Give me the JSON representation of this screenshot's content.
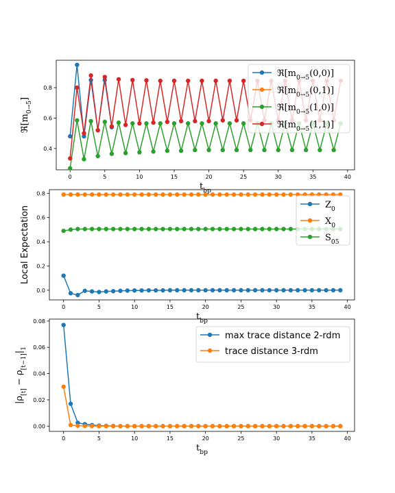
{
  "colors": {
    "blue": "#1f77b4",
    "orange": "#ff7f0e",
    "green": "#2ca02c",
    "red": "#d62728"
  },
  "chart_data": [
    {
      "type": "line",
      "xlabel": "t_bp",
      "ylabel": "ℜ[m_{0→5}]",
      "xlim": [
        -2,
        41
      ],
      "ylim": [
        0.26,
        0.98
      ],
      "xticks": [
        0,
        5,
        10,
        15,
        20,
        25,
        30,
        35,
        40
      ],
      "yticks": [
        0.4,
        0.6,
        0.8
      ],
      "legend_position": "top-right",
      "series": [
        {
          "name": "ℜ[m_{0→5}(0,0)]",
          "color": "#1f77b4",
          "x": [
            0,
            1,
            2,
            3,
            4,
            5,
            6
          ],
          "y": [
            0.48,
            0.95,
            0.48,
            0.85,
            0.52,
            0.85,
            0.54
          ]
        },
        {
          "name": "ℜ[m_{0→5}(0,1)]",
          "color": "#ff7f0e",
          "x": [],
          "y": []
        },
        {
          "name": "ℜ[m_{0→5}(1,0)]",
          "color": "#2ca02c",
          "x": [
            0,
            1,
            2,
            3,
            4,
            5,
            6,
            7,
            8,
            9,
            10,
            11,
            12,
            13,
            14,
            15,
            16,
            17,
            18,
            19,
            20,
            21,
            22,
            23,
            24,
            25,
            26,
            27,
            28,
            29,
            30,
            31,
            32,
            33,
            34,
            35,
            36,
            37,
            38,
            39
          ],
          "y": [
            0.27,
            0.585,
            0.33,
            0.58,
            0.35,
            0.575,
            0.365,
            0.57,
            0.37,
            0.565,
            0.375,
            0.565,
            0.38,
            0.565,
            0.385,
            0.565,
            0.385,
            0.565,
            0.39,
            0.565,
            0.39,
            0.565,
            0.39,
            0.565,
            0.39,
            0.565,
            0.39,
            0.565,
            0.39,
            0.565,
            0.39,
            0.565,
            0.39,
            0.565,
            0.39,
            0.565,
            0.39,
            0.565,
            0.39,
            0.565
          ]
        },
        {
          "name": "ℜ[m_{0→5}(1,1)]",
          "color": "#d62728",
          "x": [
            0,
            1,
            2,
            3,
            4,
            5,
            6,
            7,
            8,
            9,
            10,
            11,
            12,
            13,
            14,
            15,
            16,
            17,
            18,
            19,
            20,
            21,
            22,
            23,
            24,
            25,
            26,
            27,
            28,
            29,
            30,
            31,
            32,
            33,
            34,
            35,
            36,
            37,
            38,
            39
          ],
          "y": [
            0.335,
            0.8,
            0.5,
            0.88,
            0.52,
            0.87,
            0.545,
            0.855,
            0.555,
            0.85,
            0.565,
            0.848,
            0.57,
            0.845,
            0.575,
            0.845,
            0.58,
            0.845,
            0.58,
            0.845,
            0.58,
            0.845,
            0.585,
            0.845,
            0.585,
            0.845,
            0.585,
            0.845,
            0.585,
            0.845,
            0.585,
            0.845,
            0.585,
            0.845,
            0.585,
            0.845,
            0.585,
            0.845,
            0.585,
            0.845
          ]
        }
      ]
    },
    {
      "type": "line",
      "xlabel": "t_bp",
      "ylabel": "Local Expectation",
      "xlim": [
        -2,
        41
      ],
      "ylim": [
        -0.08,
        0.83
      ],
      "xticks": [
        0,
        5,
        10,
        15,
        20,
        25,
        30,
        35,
        40
      ],
      "yticks": [
        0.0,
        0.2,
        0.4,
        0.6,
        0.8
      ],
      "legend_position": "top-right",
      "series": [
        {
          "name": "Z_0",
          "color": "#1f77b4",
          "x": [
            0,
            1,
            2,
            3,
            4,
            5,
            6,
            7,
            8,
            9,
            10,
            11,
            12,
            13,
            14,
            15,
            16,
            17,
            18,
            19,
            20,
            21,
            22,
            23,
            24,
            25,
            26,
            27,
            28,
            29,
            30,
            31,
            32,
            33,
            34,
            35,
            36,
            37,
            38,
            39
          ],
          "y": [
            0.12,
            -0.025,
            -0.04,
            -0.005,
            -0.01,
            -0.015,
            -0.01,
            -0.008,
            -0.005,
            -0.003,
            -0.002,
            -0.002,
            -0.001,
            -0.001,
            -0.001,
            0,
            0,
            0,
            0,
            0,
            0,
            0,
            0,
            0,
            0,
            0,
            0,
            0,
            0,
            0,
            0,
            0,
            0,
            0,
            0,
            0,
            0,
            0,
            0,
            0
          ]
        },
        {
          "name": "X_0",
          "color": "#ff7f0e",
          "x": [
            0,
            1,
            2,
            3,
            4,
            5,
            6,
            7,
            8,
            9,
            10,
            11,
            12,
            13,
            14,
            15,
            16,
            17,
            18,
            19,
            20,
            21,
            22,
            23,
            24,
            25,
            26,
            27,
            28,
            29,
            30,
            31,
            32,
            33,
            34,
            35,
            36,
            37,
            38,
            39
          ],
          "y": [
            0.79,
            0.79,
            0.79,
            0.79,
            0.79,
            0.79,
            0.79,
            0.79,
            0.79,
            0.79,
            0.79,
            0.79,
            0.79,
            0.79,
            0.79,
            0.79,
            0.79,
            0.79,
            0.79,
            0.79,
            0.79,
            0.79,
            0.79,
            0.79,
            0.79,
            0.79,
            0.79,
            0.79,
            0.79,
            0.79,
            0.79,
            0.79,
            0.79,
            0.79,
            0.79,
            0.79,
            0.79,
            0.79,
            0.79,
            0.79
          ]
        },
        {
          "name": "S_05",
          "color": "#2ca02c",
          "x": [
            0,
            1,
            2,
            3,
            4,
            5,
            6,
            7,
            8,
            9,
            10,
            11,
            12,
            13,
            14,
            15,
            16,
            17,
            18,
            19,
            20,
            21,
            22,
            23,
            24,
            25,
            26,
            27,
            28,
            29,
            30,
            31,
            32,
            33,
            34,
            35,
            36,
            37,
            38,
            39
          ],
          "y": [
            0.49,
            0.5,
            0.505,
            0.505,
            0.505,
            0.505,
            0.505,
            0.505,
            0.505,
            0.505,
            0.505,
            0.505,
            0.505,
            0.505,
            0.505,
            0.505,
            0.505,
            0.505,
            0.505,
            0.505,
            0.505,
            0.505,
            0.505,
            0.505,
            0.505,
            0.505,
            0.505,
            0.505,
            0.505,
            0.505,
            0.505,
            0.505,
            0.505,
            0.505,
            0.505,
            0.505,
            0.505,
            0.505,
            0.505,
            0.505
          ]
        }
      ]
    },
    {
      "type": "line",
      "xlabel": "t_bp",
      "ylabel": "|ρ_[t] − ρ_[t−1]|_1",
      "xlim": [
        -2,
        41
      ],
      "ylim": [
        -0.004,
        0.0815
      ],
      "xticks": [
        0,
        5,
        10,
        15,
        20,
        25,
        30,
        35,
        40
      ],
      "yticks": [
        0.0,
        0.02,
        0.04,
        0.06,
        0.08
      ],
      "legend_position": "top-right",
      "series": [
        {
          "name": "max trace distance 2-rdm",
          "color": "#1f77b4",
          "x": [
            0,
            1,
            2,
            3,
            4,
            5,
            6,
            7,
            8,
            9,
            10,
            11,
            12,
            13,
            14,
            15,
            16,
            17,
            18,
            19,
            20,
            21,
            22,
            23,
            24,
            25,
            26,
            27,
            28,
            29,
            30,
            31,
            32,
            33,
            34,
            35,
            36,
            37,
            38,
            39
          ],
          "y": [
            0.077,
            0.017,
            0.0025,
            0.0015,
            0.0008,
            0.0004,
            0.0002,
            0.0001,
            0,
            0,
            0,
            0,
            0,
            0,
            0,
            0,
            0,
            0,
            0,
            0,
            0,
            0,
            0,
            0,
            0,
            0,
            0,
            0,
            0,
            0,
            0,
            0,
            0,
            0,
            0,
            0,
            0,
            0,
            0,
            0
          ]
        },
        {
          "name": "trace distance 3-rdm",
          "color": "#ff7f0e",
          "x": [
            0,
            1,
            2,
            3,
            4,
            5,
            6,
            7,
            8,
            9,
            10,
            11,
            12,
            13,
            14,
            15,
            16,
            17,
            18,
            19,
            20,
            21,
            22,
            23,
            24,
            25,
            26,
            27,
            28,
            29,
            30,
            31,
            32,
            33,
            34,
            35,
            36,
            37,
            38,
            39
          ],
          "y": [
            0.03,
            0.0008,
            0.0003,
            0.0002,
            0.0001,
            0,
            0,
            0,
            0,
            0,
            0,
            0,
            0,
            0,
            0,
            0,
            0,
            0,
            0,
            0,
            0,
            0,
            0,
            0,
            0,
            0,
            0,
            0,
            0,
            0,
            0,
            0,
            0,
            0,
            0,
            0,
            0,
            0,
            0,
            0
          ]
        }
      ]
    }
  ]
}
